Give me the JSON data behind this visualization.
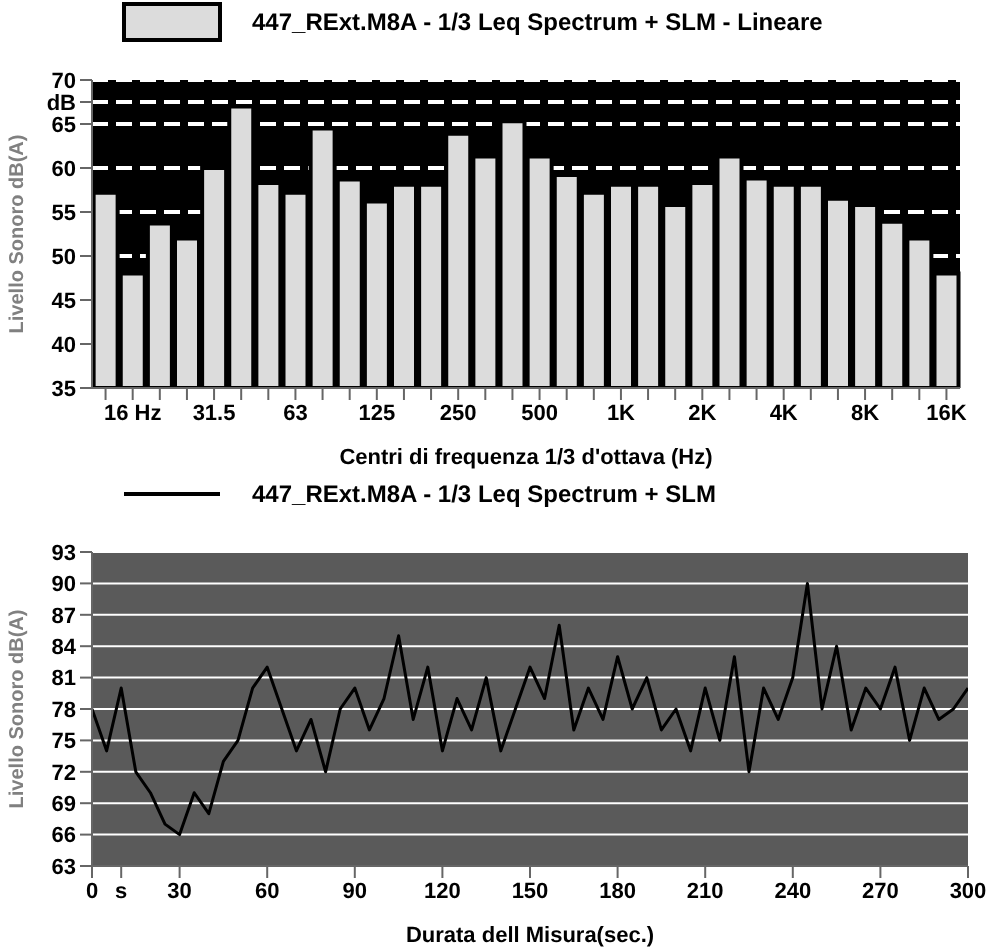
{
  "chart_data": [
    {
      "type": "bar",
      "xlabel": "Centri di frequenza 1/3 d'ottava (Hz)",
      "ylabel": "Livello Sonoro dB(A)",
      "categories": [
        null,
        "16 Hz",
        null,
        null,
        "31.5",
        null,
        null,
        "63",
        null,
        null,
        "125",
        null,
        null,
        "250",
        null,
        null,
        "500",
        null,
        null,
        "1K",
        null,
        null,
        "2K",
        null,
        null,
        "4K",
        null,
        null,
        "8K",
        null,
        null,
        "16K"
      ],
      "series": [
        {
          "name": "447_RExt.M8A - 1/3 Leq Spectrum + SLM - Lineare",
          "color": "#dcdcdc",
          "values": [
            57.2,
            48,
            53.7,
            52,
            60,
            67,
            58.3,
            57.2,
            64.5,
            58.7,
            56.2,
            58.1,
            58.1,
            63.9,
            61.3,
            65.3,
            61.3,
            59.2,
            57.2,
            58.1,
            58.1,
            55.8,
            58.3,
            61.3,
            58.8,
            58.1,
            58.1,
            56.5,
            55.8,
            53.9,
            52,
            48
          ]
        }
      ],
      "ylim": [
        35,
        70
      ],
      "yticks": [
        35,
        40,
        45,
        50,
        55,
        60,
        65,
        {
          "value": 67.5,
          "label": "dB"
        },
        70
      ],
      "grid": "y",
      "legend": "top"
    },
    {
      "type": "line",
      "xlabel": "Durata dell Misura(sec.)",
      "ylabel": "Livello Sonoro dB(A)",
      "series": [
        {
          "name": "447_RExt.M8A - 1/3 Leq Spectrum + SLM",
          "color": "#000000",
          "x": [
            0,
            5,
            10,
            15,
            20,
            25,
            30,
            35,
            40,
            45,
            50,
            55,
            60,
            65,
            70,
            75,
            80,
            85,
            90,
            95,
            100,
            105,
            110,
            115,
            120,
            125,
            130,
            135,
            140,
            145,
            150,
            155,
            160,
            165,
            170,
            175,
            180,
            185,
            190,
            195,
            200,
            205,
            210,
            215,
            220,
            225,
            230,
            235,
            240,
            245,
            250,
            255,
            260,
            265,
            270,
            275,
            280,
            285,
            290,
            295,
            300
          ],
          "values": [
            78,
            74,
            80,
            72,
            70,
            67,
            66,
            70,
            68,
            73,
            75,
            80,
            82,
            78,
            74,
            77,
            72,
            78,
            80,
            76,
            79,
            85,
            77,
            82,
            74,
            79,
            76,
            81,
            74,
            78,
            82,
            79,
            86,
            76,
            80,
            77,
            83,
            78,
            81,
            76,
            78,
            74,
            80,
            75,
            83,
            72,
            80,
            77,
            81,
            90,
            78,
            84,
            76,
            80,
            78,
            82,
            75,
            80,
            77,
            78,
            80
          ]
        }
      ],
      "xlim": [
        0,
        300
      ],
      "xticks": [
        0,
        {
          "value": 10,
          "label": "s"
        },
        30,
        60,
        90,
        120,
        150,
        180,
        210,
        240,
        270,
        300
      ],
      "ylim": [
        63,
        93
      ],
      "yticks": [
        63,
        66,
        69,
        72,
        75,
        78,
        81,
        84,
        87,
        90,
        93
      ],
      "grid": "y",
      "legend": "top",
      "line_style": "solid",
      "marker": "none"
    }
  ]
}
